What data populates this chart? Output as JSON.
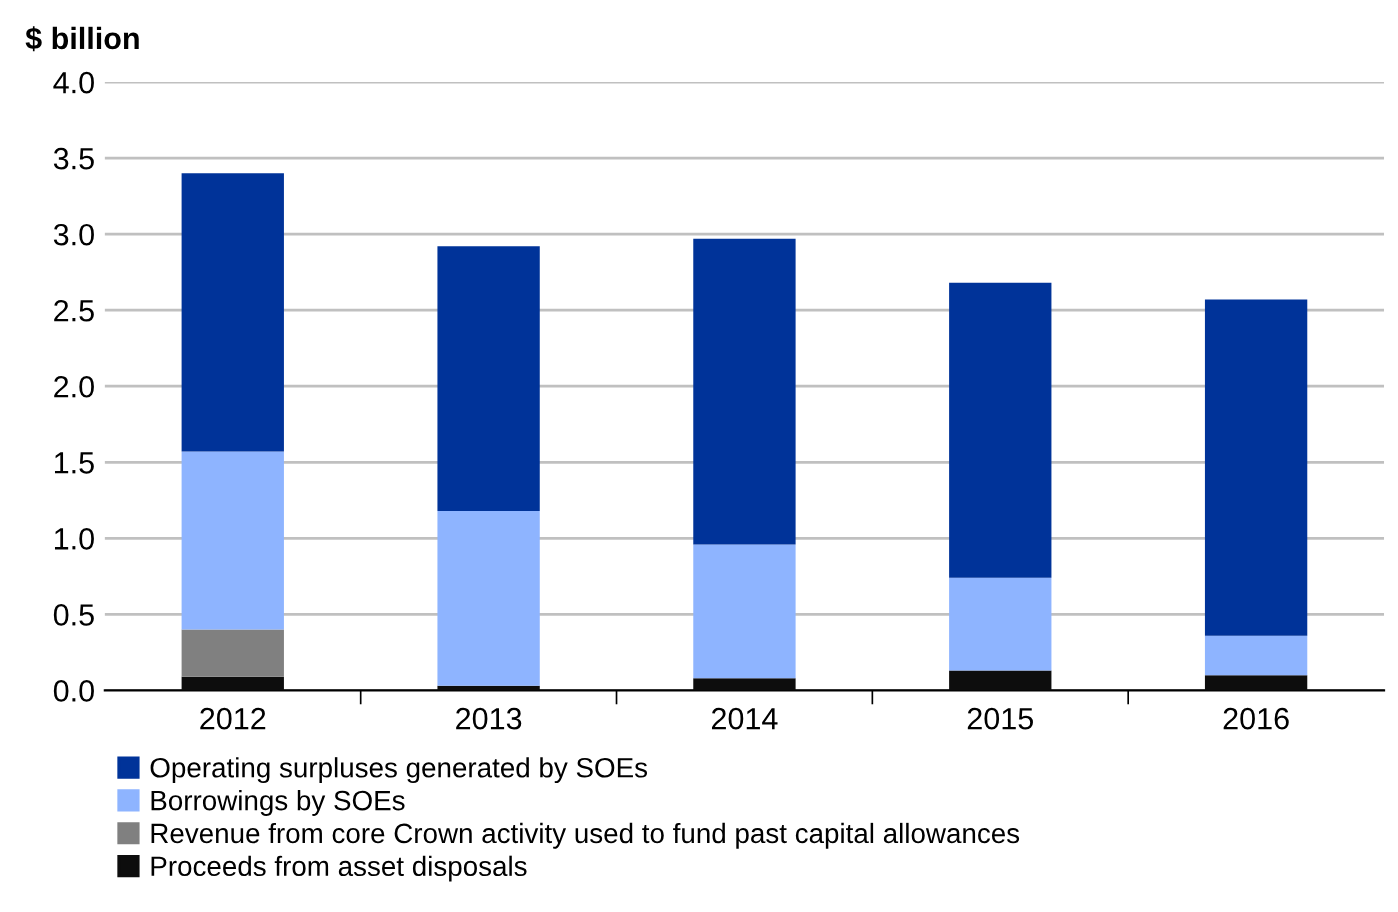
{
  "chart_data": {
    "type": "bar",
    "stacked": true,
    "ylabel": "$ billion",
    "categories": [
      "2012",
      "2013",
      "2014",
      "2015",
      "2016"
    ],
    "series": [
      {
        "name": "Proceeds from asset disposals",
        "color": "#0d0d0d",
        "values": [
          0.09,
          0.03,
          0.08,
          0.13,
          0.1
        ]
      },
      {
        "name": "Revenue from core Crown activity used to fund past capital allowances",
        "color": "#808080",
        "values": [
          0.31,
          0,
          0,
          0,
          0
        ]
      },
      {
        "name": "Borrowings by SOEs",
        "color": "#8eb4ff",
        "values": [
          1.17,
          1.15,
          0.88,
          0.61,
          0.26
        ]
      },
      {
        "name": "Operating surpluses generated by SOEs",
        "color": "#003399",
        "values": [
          1.83,
          1.74,
          2.01,
          1.94,
          2.21
        ]
      }
    ],
    "ylim": [
      0,
      4.0
    ],
    "yticks": [
      {
        "value": 0,
        "label": "0.0"
      },
      {
        "value": 0.5,
        "label": "0.5"
      },
      {
        "value": 1.0,
        "label": "1.0"
      },
      {
        "value": 1.5,
        "label": "1.5"
      },
      {
        "value": 2.0,
        "label": "2.0"
      },
      {
        "value": 2.5,
        "label": "2.5"
      },
      {
        "value": 3.0,
        "label": "3.0"
      },
      {
        "value": 3.5,
        "label": "3.5"
      },
      {
        "value": 4.0,
        "label": "4.0"
      }
    ],
    "grid": "y",
    "legend": "bottom"
  }
}
